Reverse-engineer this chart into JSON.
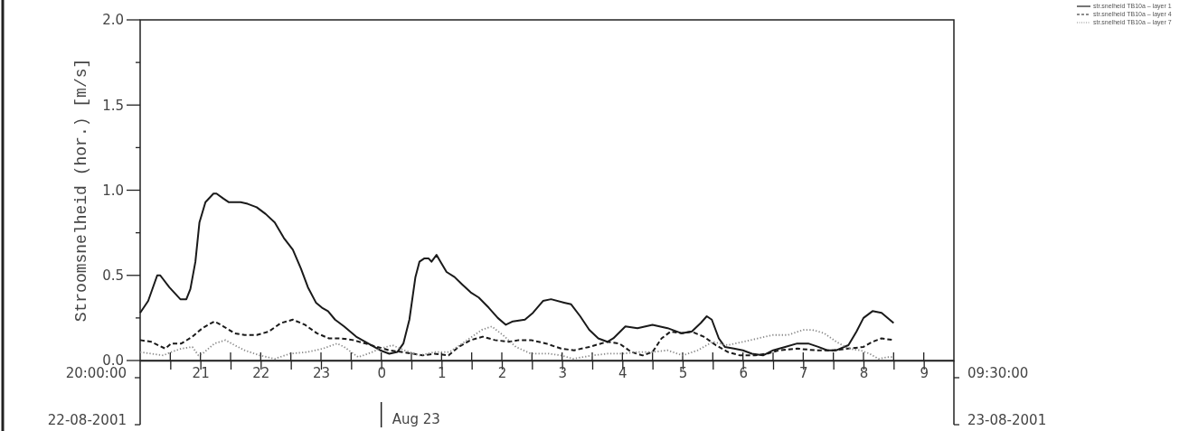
{
  "chart_data": {
    "type": "line",
    "ylabel": "Stroomsnelheid (hor.) [m/s]",
    "legend": "top right",
    "xlim": [
      "2001-08-22T20:00",
      "2001-08-23T09:30"
    ],
    "xticks": [
      {
        "value": "2001-08-22T20:30",
        "label": null
      },
      {
        "value": "2001-08-22T21:00",
        "label": "21"
      },
      {
        "value": "2001-08-22T21:30",
        "label": null
      },
      {
        "value": "2001-08-22T22:00",
        "label": "22"
      },
      {
        "value": "2001-08-22T22:30",
        "label": null
      },
      {
        "value": "2001-08-22T23:00",
        "label": "23"
      },
      {
        "value": "2001-08-22T23:30",
        "label": null
      },
      {
        "value": "2001-08-23T00:00",
        "label": "0"
      },
      {
        "value": "2001-08-23T00:30",
        "label": null
      },
      {
        "value": "2001-08-23T01:00",
        "label": "1"
      },
      {
        "value": "2001-08-23T01:30",
        "label": null
      },
      {
        "value": "2001-08-23T02:00",
        "label": "2"
      },
      {
        "value": "2001-08-23T02:30",
        "label": null
      },
      {
        "value": "2001-08-23T03:00",
        "label": "3"
      },
      {
        "value": "2001-08-23T03:30",
        "label": null
      },
      {
        "value": "2001-08-23T04:00",
        "label": "4"
      },
      {
        "value": "2001-08-23T04:30",
        "label": null
      },
      {
        "value": "2001-08-23T05:00",
        "label": "5"
      },
      {
        "value": "2001-08-23T05:30",
        "label": null
      },
      {
        "value": "2001-08-23T06:00",
        "label": "6"
      },
      {
        "value": "2001-08-23T06:30",
        "label": null
      },
      {
        "value": "2001-08-23T07:00",
        "label": "7"
      },
      {
        "value": "2001-08-23T07:30",
        "label": null
      },
      {
        "value": "2001-08-23T08:00",
        "label": "8"
      },
      {
        "value": "2001-08-23T08:30",
        "label": null
      },
      {
        "value": "2001-08-23T09:00",
        "label": "9"
      }
    ],
    "ylim": [
      0,
      2
    ],
    "yticks": [
      {
        "value": 0,
        "label": "0.0"
      },
      {
        "value": 0.25,
        "label": null
      },
      {
        "value": 0.5,
        "label": "0.5"
      },
      {
        "value": 0.75,
        "label": null
      },
      {
        "value": 1,
        "label": "1.0"
      },
      {
        "value": 1.25,
        "label": null
      },
      {
        "value": 1.5,
        "label": "1.5"
      },
      {
        "value": 1.75,
        "label": null
      },
      {
        "value": 2,
        "label": "2.0"
      }
    ],
    "annotations": [
      "20:00:00",
      "22-08-2001",
      "Aug 23",
      "09:30:00",
      "23-08-2001"
    ],
    "series": [
      {
        "name": "str.snelheid TB10a – layer 1",
        "color": "#1a1a1a",
        "line_style": "solid",
        "x": [
          "2001-08-22T20:00",
          "2001-08-22T20:08",
          "2001-08-22T20:17",
          "2001-08-22T20:20",
          "2001-08-22T20:29",
          "2001-08-22T20:40",
          "2001-08-22T20:46",
          "2001-08-22T20:50",
          "2001-08-22T20:55",
          "2001-08-22T20:59",
          "2001-08-22T21:05",
          "2001-08-22T21:13",
          "2001-08-22T21:16",
          "2001-08-22T21:23",
          "2001-08-22T21:28",
          "2001-08-22T21:40",
          "2001-08-22T21:47",
          "2001-08-22T21:56",
          "2001-08-22T22:05",
          "2001-08-22T22:14",
          "2001-08-22T22:23",
          "2001-08-22T22:32",
          "2001-08-22T22:40",
          "2001-08-22T22:47",
          "2001-08-22T22:55",
          "2001-08-22T23:01",
          "2001-08-22T23:07",
          "2001-08-22T23:14",
          "2001-08-22T23:23",
          "2001-08-22T23:35",
          "2001-08-22T23:47",
          "2001-08-22T23:59",
          "2001-08-23T00:08",
          "2001-08-23T00:16",
          "2001-08-23T00:22",
          "2001-08-23T00:28",
          "2001-08-23T00:34",
          "2001-08-23T00:38",
          "2001-08-23T00:43",
          "2001-08-23T00:47",
          "2001-08-23T00:50",
          "2001-08-23T00:55",
          "2001-08-23T00:59",
          "2001-08-23T01:05",
          "2001-08-23T01:13",
          "2001-08-23T01:20",
          "2001-08-23T01:29",
          "2001-08-23T01:37",
          "2001-08-23T01:47",
          "2001-08-23T01:56",
          "2001-08-23T02:04",
          "2001-08-23T02:11",
          "2001-08-23T02:23",
          "2001-08-23T02:31",
          "2001-08-23T02:41",
          "2001-08-23T02:49",
          "2001-08-23T03:02",
          "2001-08-23T03:09",
          "2001-08-23T03:18",
          "2001-08-23T03:27",
          "2001-08-23T03:36",
          "2001-08-23T03:45",
          "2001-08-23T03:51",
          "2001-08-23T04:03",
          "2001-08-23T04:15",
          "2001-08-23T04:30",
          "2001-08-23T04:45",
          "2001-08-23T04:59",
          "2001-08-23T05:09",
          "2001-08-23T05:18",
          "2001-08-23T05:24",
          "2001-08-23T05:29",
          "2001-08-23T05:36",
          "2001-08-23T05:42",
          "2001-08-23T05:51",
          "2001-08-23T06:00",
          "2001-08-23T06:09",
          "2001-08-23T06:20",
          "2001-08-23T06:30",
          "2001-08-23T06:42",
          "2001-08-23T06:54",
          "2001-08-23T07:05",
          "2001-08-23T07:15",
          "2001-08-23T07:24",
          "2001-08-23T07:33",
          "2001-08-23T07:45",
          "2001-08-23T07:53",
          "2001-08-23T08:00",
          "2001-08-23T08:09",
          "2001-08-23T08:18",
          "2001-08-23T08:30"
        ],
        "values": [
          0.28,
          0.35,
          0.5,
          0.5,
          0.43,
          0.36,
          0.36,
          0.42,
          0.58,
          0.81,
          0.93,
          0.98,
          0.98,
          0.95,
          0.93,
          0.93,
          0.92,
          0.9,
          0.86,
          0.81,
          0.72,
          0.65,
          0.54,
          0.43,
          0.34,
          0.31,
          0.29,
          0.24,
          0.2,
          0.14,
          0.1,
          0.06,
          0.04,
          0.05,
          0.1,
          0.24,
          0.49,
          0.58,
          0.6,
          0.6,
          0.58,
          0.62,
          0.58,
          0.52,
          0.49,
          0.45,
          0.4,
          0.37,
          0.31,
          0.25,
          0.21,
          0.23,
          0.24,
          0.28,
          0.35,
          0.36,
          0.34,
          0.33,
          0.26,
          0.18,
          0.13,
          0.11,
          0.13,
          0.2,
          0.19,
          0.21,
          0.19,
          0.16,
          0.17,
          0.22,
          0.26,
          0.24,
          0.13,
          0.08,
          0.07,
          0.06,
          0.04,
          0.03,
          0.06,
          0.08,
          0.1,
          0.1,
          0.08,
          0.06,
          0.06,
          0.09,
          0.17,
          0.25,
          0.29,
          0.28,
          0.22
        ]
      },
      {
        "name": "str.snelheid TB10a – layer 4",
        "color": "#1a1a1a",
        "line_style": "dashed",
        "x": [
          "2001-08-22T20:00",
          "2001-08-22T20:11",
          "2001-08-22T20:25",
          "2001-08-22T20:31",
          "2001-08-22T20:41",
          "2001-08-22T20:52",
          "2001-08-22T21:02",
          "2001-08-22T21:14",
          "2001-08-22T21:23",
          "2001-08-22T21:34",
          "2001-08-22T21:44",
          "2001-08-22T21:56",
          "2001-08-22T22:08",
          "2001-08-22T22:20",
          "2001-08-22T22:32",
          "2001-08-22T22:44",
          "2001-08-22T22:56",
          "2001-08-22T23:08",
          "2001-08-22T23:20",
          "2001-08-22T23:32",
          "2001-08-22T23:44",
          "2001-08-22T23:56",
          "2001-08-23T00:08",
          "2001-08-23T00:20",
          "2001-08-23T00:32",
          "2001-08-23T00:41",
          "2001-08-23T00:53",
          "2001-08-23T01:07",
          "2001-08-23T01:17",
          "2001-08-23T01:29",
          "2001-08-23T01:41",
          "2001-08-23T01:53",
          "2001-08-23T02:07",
          "2001-08-23T02:17",
          "2001-08-23T02:29",
          "2001-08-23T02:44",
          "2001-08-23T02:59",
          "2001-08-23T03:12",
          "2001-08-23T03:27",
          "2001-08-23T03:45",
          "2001-08-23T03:57",
          "2001-08-23T04:09",
          "2001-08-23T04:20",
          "2001-08-23T04:30",
          "2001-08-23T04:39",
          "2001-08-23T04:48",
          "2001-08-23T04:59",
          "2001-08-23T05:09",
          "2001-08-23T05:21",
          "2001-08-23T05:33",
          "2001-08-23T05:45",
          "2001-08-23T05:57",
          "2001-08-23T06:12",
          "2001-08-23T06:24",
          "2001-08-23T06:36",
          "2001-08-23T06:54",
          "2001-08-23T07:12",
          "2001-08-23T07:30",
          "2001-08-23T07:45",
          "2001-08-23T08:00",
          "2001-08-23T08:09",
          "2001-08-23T08:18",
          "2001-08-23T08:30"
        ],
        "values": [
          0.12,
          0.11,
          0.07,
          0.1,
          0.1,
          0.14,
          0.19,
          0.23,
          0.2,
          0.16,
          0.15,
          0.15,
          0.17,
          0.22,
          0.24,
          0.21,
          0.16,
          0.13,
          0.13,
          0.12,
          0.1,
          0.08,
          0.06,
          0.05,
          0.04,
          0.03,
          0.04,
          0.03,
          0.08,
          0.12,
          0.14,
          0.12,
          0.11,
          0.12,
          0.12,
          0.1,
          0.07,
          0.06,
          0.08,
          0.11,
          0.1,
          0.05,
          0.03,
          0.05,
          0.13,
          0.17,
          0.16,
          0.17,
          0.14,
          0.09,
          0.05,
          0.03,
          0.03,
          0.04,
          0.06,
          0.07,
          0.06,
          0.06,
          0.07,
          0.08,
          0.11,
          0.13,
          0.12
        ]
      },
      {
        "name": "str.snelheid TB10a – layer 7",
        "color": "#8a8a8a",
        "line_style": "dotted",
        "x": [
          "2001-08-22T20:00",
          "2001-08-22T20:11",
          "2001-08-22T20:23",
          "2001-08-22T20:31",
          "2001-08-22T20:41",
          "2001-08-22T20:52",
          "2001-08-22T20:58",
          "2001-08-22T21:02",
          "2001-08-22T21:14",
          "2001-08-22T21:25",
          "2001-08-22T21:34",
          "2001-08-22T21:44",
          "2001-08-22T21:59",
          "2001-08-22T22:14",
          "2001-08-22T22:29",
          "2001-08-22T22:47",
          "2001-08-22T23:02",
          "2001-08-22T23:16",
          "2001-08-22T23:23",
          "2001-08-22T23:37",
          "2001-08-22T23:47",
          "2001-08-22T23:59",
          "2001-08-23T00:11",
          "2001-08-23T00:23",
          "2001-08-23T00:38",
          "2001-08-23T00:53",
          "2001-08-23T01:08",
          "2001-08-23T01:23",
          "2001-08-23T01:40",
          "2001-08-23T01:50",
          "2001-08-23T02:01",
          "2001-08-23T02:14",
          "2001-08-23T02:29",
          "2001-08-23T02:47",
          "2001-08-23T02:59",
          "2001-08-23T03:11",
          "2001-08-23T03:30",
          "2001-08-23T03:45",
          "2001-08-23T04:00",
          "2001-08-23T04:15",
          "2001-08-23T04:30",
          "2001-08-23T04:45",
          "2001-08-23T05:00",
          "2001-08-23T05:15",
          "2001-08-23T05:30",
          "2001-08-23T05:45",
          "2001-08-23T06:00",
          "2001-08-23T06:15",
          "2001-08-23T06:30",
          "2001-08-23T06:45",
          "2001-08-23T07:00",
          "2001-08-23T07:09",
          "2001-08-23T07:21",
          "2001-08-23T07:33",
          "2001-08-23T07:45",
          "2001-08-23T07:57",
          "2001-08-23T08:06",
          "2001-08-23T08:15",
          "2001-08-23T08:24",
          "2001-08-23T08:30"
        ],
        "values": [
          0.05,
          0.04,
          0.03,
          0.05,
          0.07,
          0.08,
          0.03,
          0.04,
          0.1,
          0.12,
          0.09,
          0.06,
          0.03,
          0.01,
          0.04,
          0.05,
          0.07,
          0.1,
          0.08,
          0.02,
          0.04,
          0.07,
          0.09,
          0.06,
          0.03,
          0.05,
          0.05,
          0.11,
          0.18,
          0.2,
          0.15,
          0.08,
          0.04,
          0.04,
          0.03,
          0.01,
          0.03,
          0.04,
          0.04,
          0.05,
          0.05,
          0.06,
          0.03,
          0.06,
          0.11,
          0.09,
          0.11,
          0.13,
          0.15,
          0.15,
          0.18,
          0.18,
          0.16,
          0.11,
          0.07,
          0.06,
          0.04,
          0.01,
          0.02,
          0.02
        ]
      }
    ]
  }
}
